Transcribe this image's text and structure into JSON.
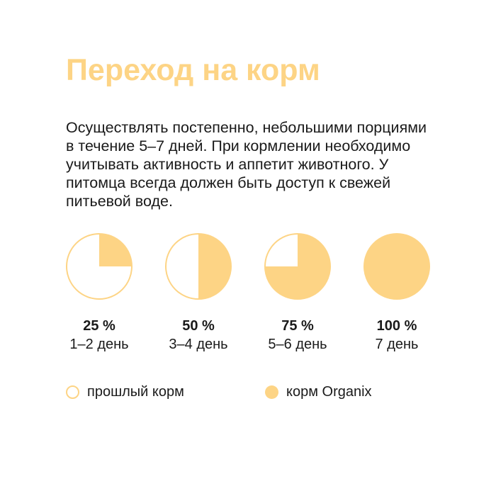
{
  "title": "Переход на корм",
  "description": "Осуществлять постепенно, небольшими порциями в течение 5–7 дней. При кормлении необходимо учитывать активность и аппетит животного. У питомца всегда должен быть доступ к свежей питьевой воде.",
  "colors": {
    "accent": "#fdd485",
    "pie_fill": "#fdd485",
    "pie_outline": "#fdd485",
    "background": "#ffffff",
    "text": "#1a1a1a"
  },
  "legend": {
    "old_food": "прошлый корм",
    "new_food": "корм Organix"
  },
  "chart_data": {
    "type": "pie",
    "stages": [
      {
        "percent": 25,
        "percent_label": "25 %",
        "day_label": "1–2 день"
      },
      {
        "percent": 50,
        "percent_label": "50 %",
        "day_label": "3–4 день"
      },
      {
        "percent": 75,
        "percent_label": "75 %",
        "day_label": "5–6 день"
      },
      {
        "percent": 100,
        "percent_label": "100 %",
        "day_label": "7 день"
      }
    ],
    "series": [
      "прошлый корм",
      "корм Organix"
    ]
  }
}
